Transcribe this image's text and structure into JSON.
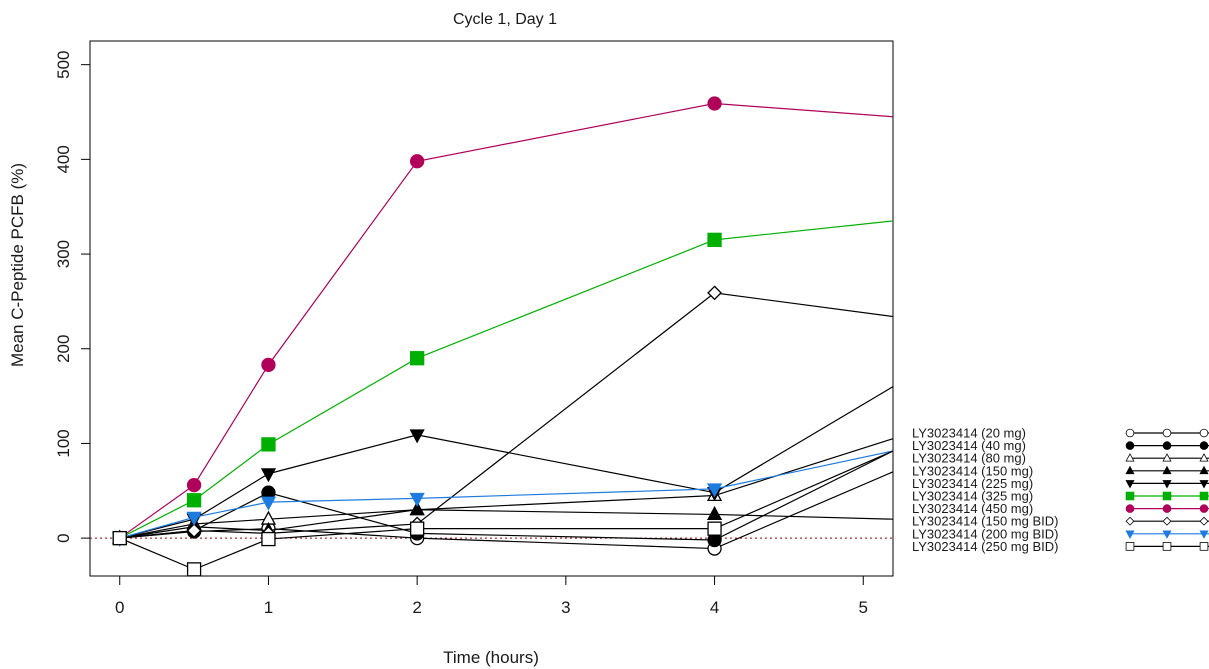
{
  "chart_data": {
    "type": "line",
    "title": "Cycle 1, Day 1",
    "xlabel": "Time (hours)",
    "ylabel": "Mean C-Peptide PCFB (%)",
    "xlim": [
      -0.2,
      5.2
    ],
    "ylim": [
      -40,
      525
    ],
    "xticks": [
      0,
      1,
      2,
      3,
      4,
      5
    ],
    "yticks": [
      0,
      100,
      200,
      300,
      400,
      500
    ],
    "grid": false,
    "legend_position": "right",
    "reference_line": {
      "y": 0,
      "color": "#a00000",
      "style": "dotted"
    },
    "x": [
      0,
      0.5,
      1,
      2,
      4,
      5.2
    ],
    "series": [
      {
        "name": "LY3023414 (20 mg)",
        "marker": "circle-open",
        "color": "#000000",
        "values": [
          0,
          7,
          10,
          0,
          -11,
          70
        ]
      },
      {
        "name": "LY3023414 (40 mg)",
        "marker": "circle-filled",
        "color": "#000000",
        "values": [
          0,
          8,
          48,
          5,
          -2,
          92
        ]
      },
      {
        "name": "LY3023414 (80 mg)",
        "marker": "triangle-up-open",
        "color": "#000000",
        "values": [
          0,
          15,
          20,
          30,
          45,
          105
        ]
      },
      {
        "name": "LY3023414 (150 mg)",
        "marker": "triangle-up-filled",
        "color": "#000000",
        "values": [
          0,
          12,
          8,
          30,
          25,
          20
        ]
      },
      {
        "name": "LY3023414 (225 mg)",
        "marker": "triangle-down-filled",
        "color": "#000000",
        "values": [
          0,
          20,
          68,
          109,
          48,
          160
        ]
      },
      {
        "name": "LY3023414 (325 mg)",
        "marker": "square-filled",
        "color": "#00b000",
        "values": [
          0,
          40,
          99,
          190,
          315,
          335
        ]
      },
      {
        "name": "LY3023414 (450 mg)",
        "marker": "circle-filled",
        "color": "#b0005a",
        "values": [
          0,
          56,
          183,
          398,
          459,
          445
        ]
      },
      {
        "name": "LY3023414 (150 mg BID)",
        "marker": "diamond-open",
        "color": "#000000",
        "values": [
          0,
          8,
          5,
          15,
          259,
          234
        ]
      },
      {
        "name": "LY3023414 (200 mg BID)",
        "marker": "triangle-down-filled",
        "color": "#1e7be0",
        "values": [
          0,
          22,
          38,
          42,
          52,
          92
        ]
      },
      {
        "name": "LY3023414 (250 mg BID)",
        "marker": "square-open",
        "color": "#000000",
        "values": [
          0,
          -33,
          -1,
          10,
          10,
          92
        ]
      }
    ]
  }
}
